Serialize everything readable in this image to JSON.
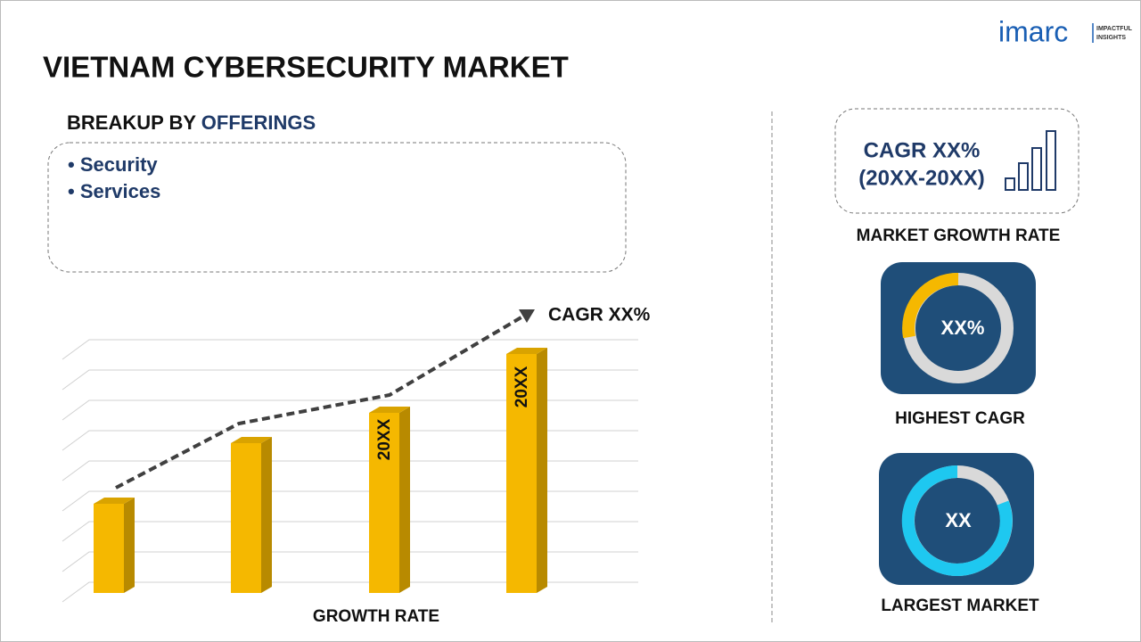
{
  "header": {
    "title": "VIETNAM CYBERSECURITY MARKET",
    "logo": "imarc",
    "logo_tagline": [
      "IMPACTFUL",
      "INSIGHTS"
    ]
  },
  "breakup": {
    "label": "BREAKUP BY",
    "label_highlight": "OFFERINGS",
    "items": [
      "Security",
      "Services"
    ]
  },
  "growth_chart": {
    "trend_label": "CAGR XX%",
    "bar_labels": [
      "20XX",
      "20XX"
    ],
    "axis_label": "GROWTH RATE"
  },
  "cards": [
    {
      "value": "CAGR XX%",
      "sub": "(20XX-20XX)",
      "label": "MARKET GROWTH RATE"
    },
    {
      "value": "XX%",
      "label": "HIGHEST CAGR"
    },
    {
      "value": "XX",
      "label": "LARGEST MARKET"
    }
  ]
}
